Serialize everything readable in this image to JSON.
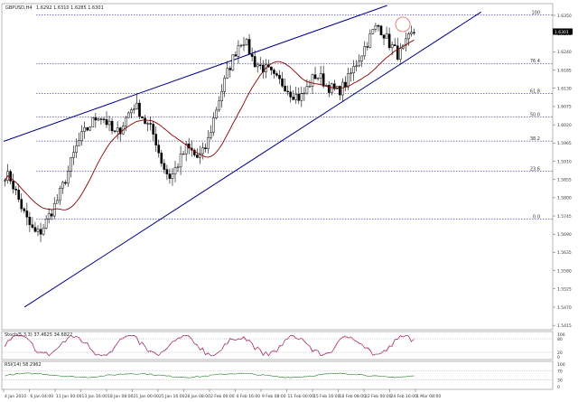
{
  "header": {
    "symbol_text": "GBPUSD,H4",
    "ohlc_text": "1.6292 1.6310 1.6285 1.6301"
  },
  "price_axis": {
    "ticks": [
      "1.6350",
      "1.6295",
      "1.6240",
      "1.6185",
      "1.6130",
      "1.6075",
      "1.6020",
      "1.5965",
      "1.5910",
      "1.5855",
      "1.5800",
      "1.5745",
      "1.5690",
      "1.5635",
      "1.5580",
      "1.5525",
      "1.5470",
      "1.5415"
    ],
    "current_price": "1.6301"
  },
  "fib_levels": [
    {
      "label": "100",
      "price": 1.6352
    },
    {
      "label": "76.4",
      "price": 1.6205
    },
    {
      "label": "61.8",
      "price": 1.6115
    },
    {
      "label": "50.0",
      "price": 1.6044
    },
    {
      "label": "38.2",
      "price": 1.5971
    },
    {
      "label": "23.6",
      "price": 1.588
    },
    {
      "label": "0.0",
      "price": 1.5735
    }
  ],
  "stoch": {
    "label": "Stoch(5,3,3) 37.4625 34.6822",
    "ticks": [
      "100",
      "80",
      "20",
      "0"
    ]
  },
  "rsi": {
    "label": "RSI(14) 58.2962",
    "ticks": [
      "100",
      "70",
      "30",
      "0"
    ]
  },
  "time_axis": [
    "4 Jan 2010",
    "6 Jan 04:00",
    "11 Jan 00:00",
    "13 Jan 16:00",
    "18 Jan 08:00",
    "21 Jan 00:00",
    "25 Jan 16:00",
    "28 Jan 08:00",
    "2 Feb 00:00",
    "4 Feb 16:00",
    "9 Feb 08:00",
    "11 Feb 00:00",
    "15 Feb 16:00",
    "18 Feb 08:00",
    "22 Feb 00:00",
    "24 Feb 16:00",
    "1 Mar 08:00"
  ],
  "colors": {
    "candle": "#000000",
    "ma": "#8b0000",
    "channel": "#00008b",
    "fib": "#000080",
    "stoch_main": "#d0103a",
    "stoch_signal": "#1a2fb0",
    "rsi": "#1f7a1f",
    "highlight": "#e06060"
  },
  "chart_data": {
    "type": "candlestick",
    "timeframe": "H4",
    "y_range": [
      1.541,
      1.638
    ],
    "close_path": [
      1.587,
      1.586,
      1.582,
      1.578,
      1.574,
      1.571,
      1.569,
      1.57,
      1.573,
      1.576,
      1.579,
      1.583,
      1.587,
      1.592,
      1.596,
      1.599,
      1.601,
      1.603,
      1.605,
      1.604,
      1.602,
      1.599,
      1.6,
      1.603,
      1.606,
      1.608,
      1.606,
      1.603,
      1.601,
      1.598,
      1.592,
      1.588,
      1.586,
      1.589,
      1.592,
      1.595,
      1.594,
      1.592,
      1.593,
      1.596,
      1.602,
      1.608,
      1.613,
      1.618,
      1.622,
      1.626,
      1.628,
      1.625,
      1.621,
      1.62,
      1.619,
      1.618,
      1.616,
      1.615,
      1.614,
      1.612,
      1.611,
      1.61,
      1.612,
      1.615,
      1.617,
      1.616,
      1.614,
      1.613,
      1.612,
      1.613,
      1.615,
      1.618,
      1.621,
      1.624,
      1.627,
      1.63,
      1.632,
      1.63,
      1.627,
      1.625,
      1.623,
      1.625,
      1.628,
      1.63
    ],
    "ma_period_note": "",
    "channel": {
      "upper": [
        [
          0,
          1.597
        ],
        [
          58,
          1.638
        ]
      ],
      "lower": [
        [
          4,
          1.547
        ],
        [
          76,
          1.636
        ]
      ]
    },
    "stoch_range": [
      0,
      100
    ],
    "rsi_range": [
      0,
      100
    ]
  }
}
